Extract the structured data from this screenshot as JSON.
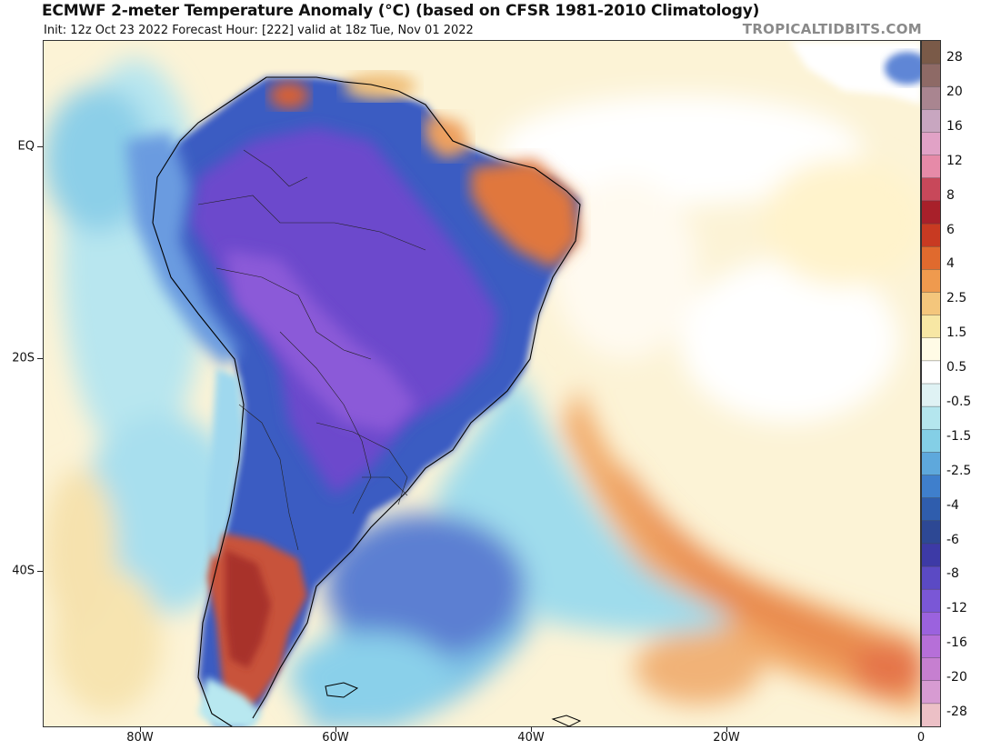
{
  "header": {
    "title": "ECMWF 2-meter Temperature Anomaly (°C) (based on CFSR 1981-2010 Climatology)",
    "subtitle": "Init: 12z Oct 23 2022   Forecast Hour: [222]   valid at 18z Tue, Nov 01 2022",
    "brand": "TROPICALTIDBITS.COM"
  },
  "lat_labels": [
    "EQ",
    "20S",
    "40S"
  ],
  "lon_labels": [
    "80W",
    "60W",
    "40W",
    "20W",
    "0"
  ],
  "colorbar": {
    "labels": [
      "28",
      "20",
      "16",
      "12",
      "8",
      "6",
      "4",
      "2.5",
      "1.5",
      "0.5",
      "-0.5",
      "-1.5",
      "-2.5",
      "-4",
      "-6",
      "-8",
      "-12",
      "-16",
      "-20",
      "-28"
    ],
    "colors": [
      "#7a5a48",
      "#8e6a66",
      "#a98590",
      "#c8a6c0",
      "#e1a2c6",
      "#e68aa8",
      "#c8485a",
      "#a8202a",
      "#c83a22",
      "#e06a2e",
      "#ef9a4e",
      "#f4c67c",
      "#f7e7a4",
      "#fffbe6",
      "#ffffff",
      "#dff2f4",
      "#b4e6ee",
      "#84cfe6",
      "#5ea8dc",
      "#3f7fcc",
      "#2f5dad",
      "#2d4894",
      "#3d3aa6",
      "#5b4ac4",
      "#7a57d6",
      "#9b62de",
      "#b66fd8",
      "#c67fd0",
      "#d79bd2",
      "#ecc0c6"
    ]
  },
  "map_colors": {
    "ocean_warm": "#fbefc6",
    "cold_deep": "#6c48c8",
    "cold_mid": "#3c5cc0",
    "cold_light": "#a8e0ee",
    "warm": "#e0703a"
  }
}
